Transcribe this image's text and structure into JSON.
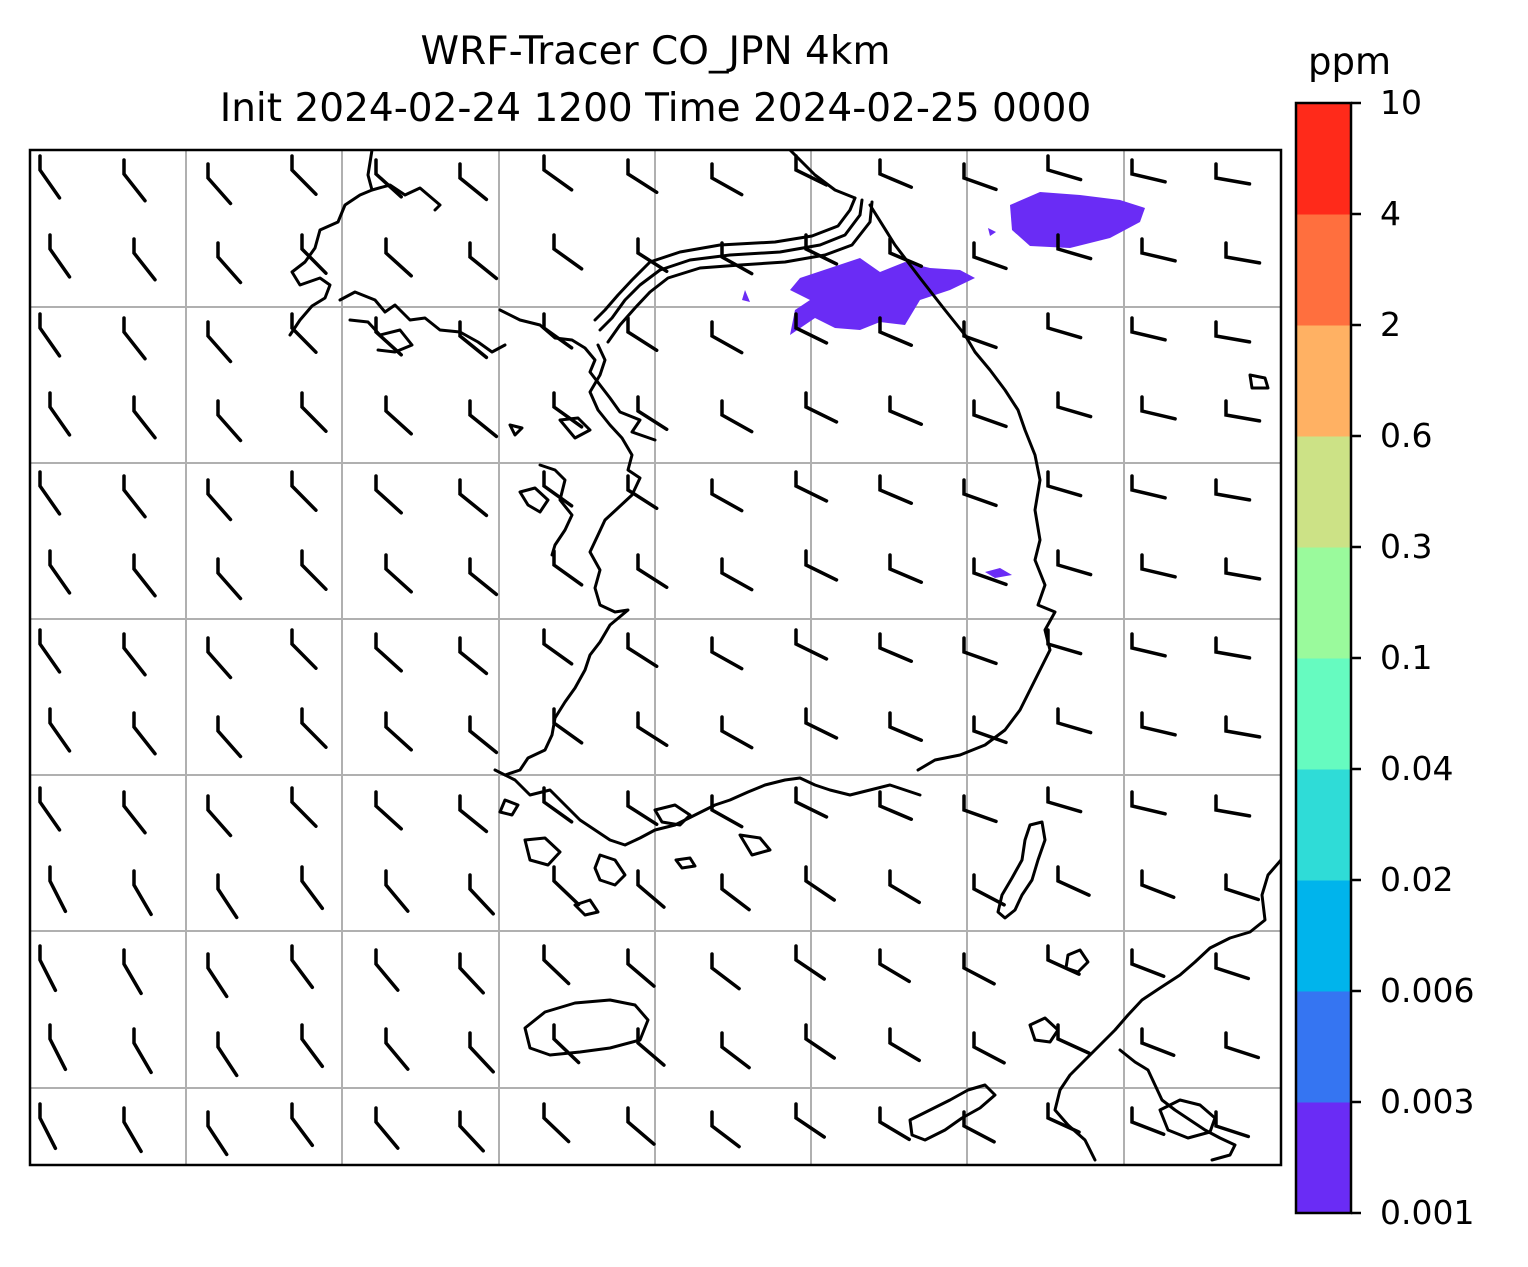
{
  "title_line1": "WRF-Tracer CO_JPN 4km",
  "title_line2": "Init 2024-02-24 1200 Time 2024-02-25 0000",
  "colorbar": {
    "units": "ppm",
    "ticks": [
      "0.001",
      "0.003",
      "0.006",
      "0.02",
      "0.04",
      "0.1",
      "0.3",
      "0.6",
      "2",
      "4",
      "10"
    ],
    "colors": [
      "#6a2cf5",
      "#3575f2",
      "#00b4ec",
      "#2fdcd7",
      "#66fbc0",
      "#9afa9c",
      "#cce286",
      "#ffb163",
      "#ff6f3e",
      "#ff2a1a"
    ]
  },
  "map": {
    "gridlines": true,
    "overlay": "wind barbs",
    "coastline_color": "#000000",
    "concentration_color": "#6a2cf5"
  }
}
